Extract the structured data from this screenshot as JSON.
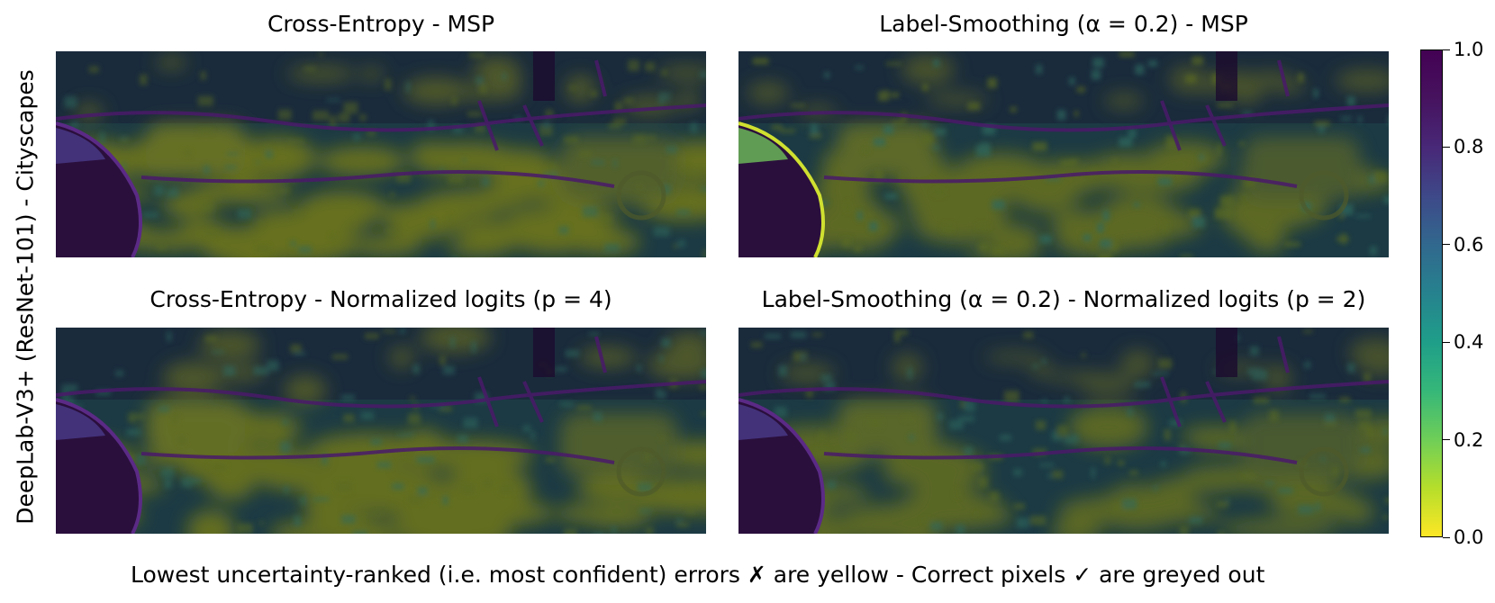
{
  "chart_data": {
    "type": "heatmap",
    "row_label": "DeepLab-V3+ (ResNet-101) - Cityscapes",
    "panels": [
      {
        "title": "Cross-Entropy - MSP",
        "yellow_level": 0.55,
        "structure_level": 0.5
      },
      {
        "title": "Label-Smoothing (α = 0.2) - MSP",
        "yellow_level": 0.4,
        "structure_level": 0.85
      },
      {
        "title": "Cross-Entropy - Normalized logits (p = 4)",
        "yellow_level": 0.5,
        "structure_level": 0.55
      },
      {
        "title": "Label-Smoothing (α = 0.2) - Normalized logits (p = 2)",
        "yellow_level": 0.35,
        "structure_level": 0.6
      }
    ],
    "colorbar": {
      "colormap": "viridis_r",
      "vmin": 0.0,
      "vmax": 1.0,
      "ticks": [
        "0.0",
        "0.2",
        "0.4",
        "0.6",
        "0.8",
        "1.0"
      ]
    },
    "caption": "Lowest uncertainty-ranked (i.e. most confident) errors ✗ are yellow - Correct pixels ✓ are greyed out"
  }
}
